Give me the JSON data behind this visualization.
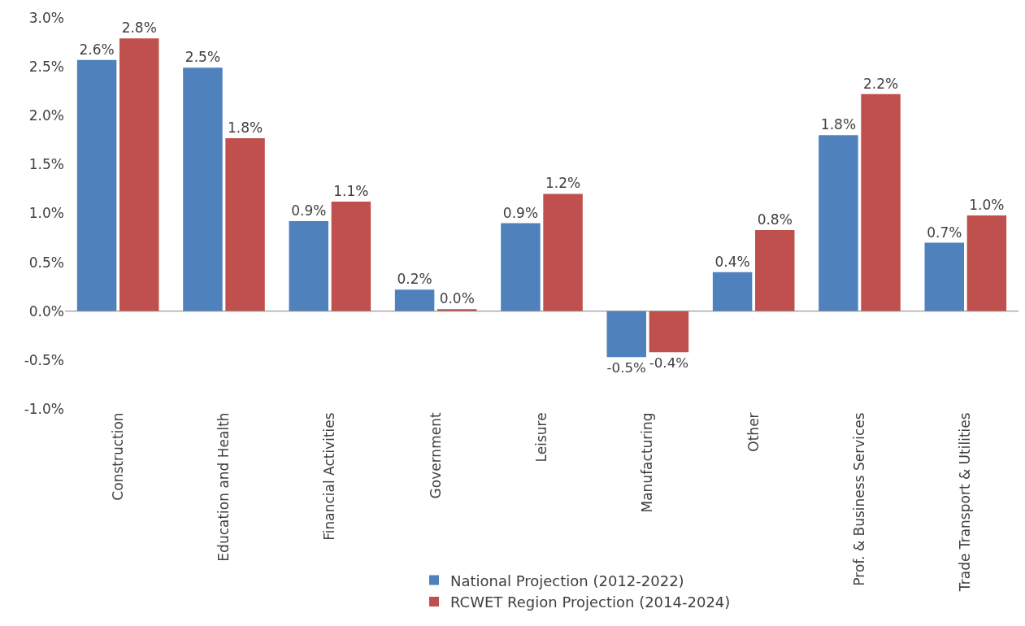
{
  "chart_data": {
    "type": "bar",
    "categories": [
      "Construction",
      "Education and Health",
      "Financial Activities",
      "Government",
      "Leisure",
      "Manufacturing",
      "Other",
      "Prof. & Business Services",
      "Trade Transport & Utilities"
    ],
    "series": [
      {
        "name": "National Projection (2012-2022)",
        "color": "#4f81bd",
        "values": [
          2.57,
          2.49,
          0.92,
          0.22,
          0.9,
          -0.47,
          0.4,
          1.8,
          0.7
        ],
        "value_labels": [
          "2.6%",
          "2.5%",
          "0.9%",
          "0.2%",
          "0.9%",
          "-0.5%",
          "0.4%",
          "1.8%",
          "0.7%"
        ]
      },
      {
        "name": "RCWET Region Projection (2014-2024)",
        "color": "#c0504d",
        "values": [
          2.79,
          1.77,
          1.12,
          0.02,
          1.2,
          -0.42,
          0.83,
          2.22,
          0.98
        ],
        "value_labels": [
          "2.8%",
          "1.8%",
          "1.1%",
          "0.0%",
          "1.2%",
          "-0.4%",
          "0.8%",
          "2.2%",
          "1.0%"
        ]
      }
    ],
    "ylim": [
      -1,
      3
    ],
    "yticks": [
      {
        "value": -1,
        "label": "-1.0%"
      },
      {
        "value": -0.5,
        "label": "-0.5%"
      },
      {
        "value": 0,
        "label": "0.0%"
      },
      {
        "value": 0.5,
        "label": "0.5%"
      },
      {
        "value": 1,
        "label": "1.0%"
      },
      {
        "value": 1.5,
        "label": "1.5%"
      },
      {
        "value": 2,
        "label": "2.0%"
      },
      {
        "value": 2.5,
        "label": "2.5%"
      },
      {
        "value": 3,
        "label": "3.0%"
      }
    ],
    "ref_lines": [
      {
        "axis": "y",
        "value": 0,
        "color": "#7f7f7f"
      }
    ],
    "legend": "bottom"
  }
}
